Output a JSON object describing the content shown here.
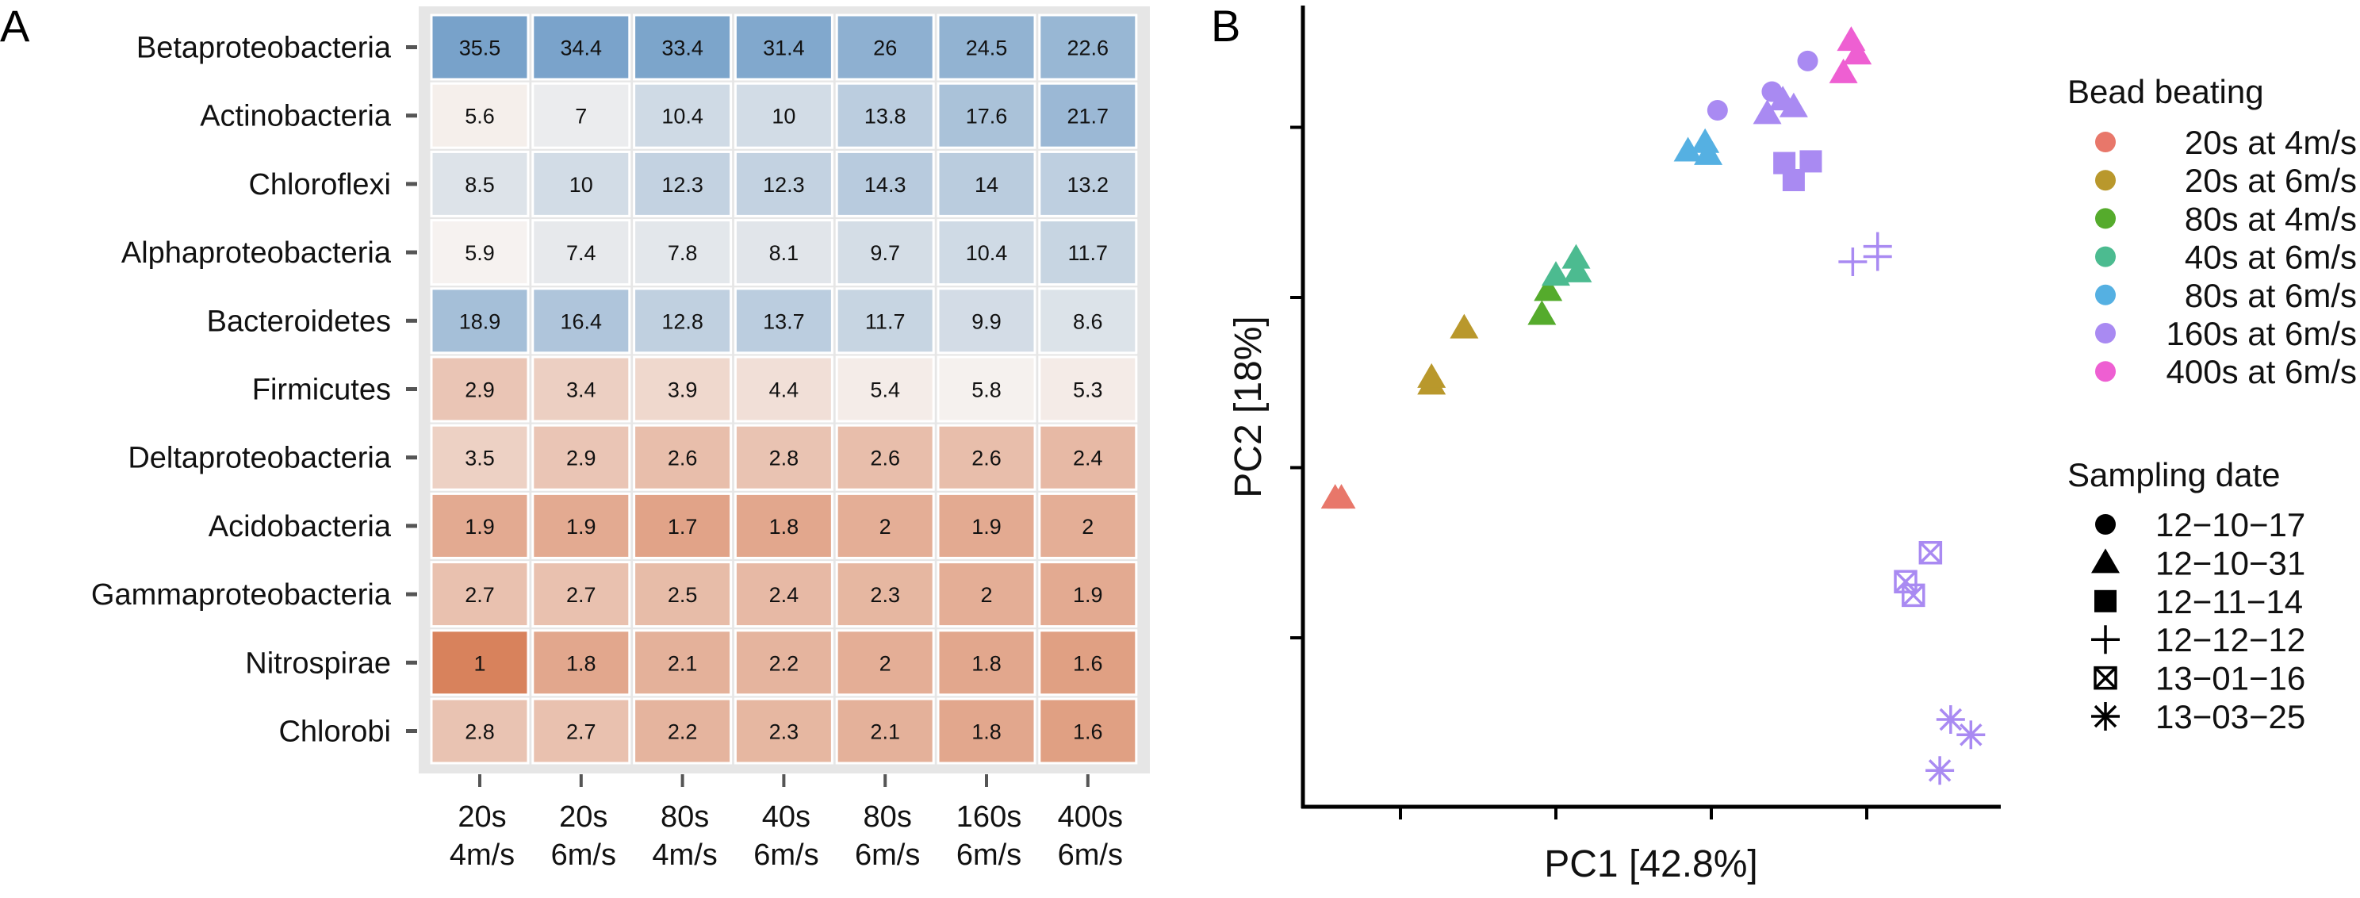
{
  "chart_data": [
    {
      "type": "heatmap",
      "panel_label": "A",
      "rows": [
        "Betaproteobacteria",
        "Actinobacteria",
        "Chloroflexi",
        "Alphaproteobacteria",
        "Bacteroidetes",
        "Firmicutes",
        "Deltaproteobacteria",
        "Acidobacteria",
        "Gammaproteobacteria",
        "Nitrospirae",
        "Chlorobi"
      ],
      "columns": [
        [
          "20s",
          "4m/s"
        ],
        [
          "20s",
          "6m/s"
        ],
        [
          "80s",
          "4m/s"
        ],
        [
          "40s",
          "6m/s"
        ],
        [
          "80s",
          "6m/s"
        ],
        [
          "160s",
          "6m/s"
        ],
        [
          "400s",
          "6m/s"
        ]
      ],
      "values": [
        [
          35.5,
          34.4,
          33.4,
          31.4,
          26,
          24.5,
          22.6
        ],
        [
          5.6,
          7,
          10.4,
          10,
          13.8,
          17.6,
          21.7
        ],
        [
          8.5,
          10,
          12.3,
          12.3,
          14.3,
          14,
          13.2
        ],
        [
          5.9,
          7.4,
          7.8,
          8.1,
          9.7,
          10.4,
          11.7
        ],
        [
          18.9,
          16.4,
          12.8,
          13.7,
          11.7,
          9.9,
          8.6
        ],
        [
          2.9,
          3.4,
          3.9,
          4.4,
          5.4,
          5.8,
          5.3
        ],
        [
          3.5,
          2.9,
          2.6,
          2.8,
          2.6,
          2.6,
          2.4
        ],
        [
          1.9,
          1.9,
          1.7,
          1.8,
          2,
          1.9,
          2
        ],
        [
          2.7,
          2.7,
          2.5,
          2.4,
          2.3,
          2,
          1.9
        ],
        [
          1,
          1.8,
          2.1,
          2.2,
          2,
          1.8,
          1.6
        ],
        [
          2.8,
          2.7,
          2.2,
          2.3,
          2.1,
          1.8,
          1.6
        ]
      ],
      "color_scale": {
        "low": "#d8825c",
        "mid": "#f6f3f1",
        "high": "#78a2ca",
        "midpoint": 6
      }
    },
    {
      "type": "scatter",
      "panel_label": "B",
      "xlabel": "PC1 [42.8%]",
      "ylabel": "PC2 [18%]",
      "xlim": [
        0.36,
        5.15
      ],
      "ylim": [
        -0.04,
        4.69
      ],
      "xticks": [
        1,
        2,
        3,
        4
      ],
      "yticks": [
        1,
        2,
        3,
        4
      ],
      "legend_color": {
        "title": "Bead beating",
        "items": [
          {
            "label": "20s at 4m/s",
            "color": "#e8776a"
          },
          {
            "label": "20s at 6m/s",
            "color": "#b9982c"
          },
          {
            "label": "80s at 4m/s",
            "color": "#55ab2c"
          },
          {
            "label": "40s at 6m/s",
            "color": "#4cbb90"
          },
          {
            "label": "80s at 6m/s",
            "color": "#55b0e2"
          },
          {
            "label": "160s at 6m/s",
            "color": "#a98af2"
          },
          {
            "label": "400s at 6m/s",
            "color": "#ee5fd2"
          }
        ]
      },
      "legend_shape": {
        "title": "Sampling date",
        "items": [
          {
            "label": "12−10−17",
            "shape": "circle"
          },
          {
            "label": "12−10−31",
            "shape": "triangle"
          },
          {
            "label": "12−11−14",
            "shape": "square"
          },
          {
            "label": "12−12−12",
            "shape": "plus"
          },
          {
            "label": "13−01−16",
            "shape": "boxx"
          },
          {
            "label": "13−03−25",
            "shape": "asterisk"
          }
        ]
      },
      "points": [
        {
          "x": 0.58,
          "y": 1.82,
          "group": 0,
          "shape": "triangle"
        },
        {
          "x": 0.62,
          "y": 1.82,
          "group": 0,
          "shape": "triangle"
        },
        {
          "x": 1.2,
          "y": 2.49,
          "group": 1,
          "shape": "triangle"
        },
        {
          "x": 1.2,
          "y": 2.53,
          "group": 1,
          "shape": "triangle"
        },
        {
          "x": 1.41,
          "y": 2.82,
          "group": 1,
          "shape": "triangle"
        },
        {
          "x": 1.91,
          "y": 2.9,
          "group": 2,
          "shape": "triangle"
        },
        {
          "x": 1.95,
          "y": 3.04,
          "group": 2,
          "shape": "triangle"
        },
        {
          "x": 2.0,
          "y": 3.13,
          "group": 3,
          "shape": "triangle"
        },
        {
          "x": 2.13,
          "y": 3.23,
          "group": 3,
          "shape": "triangle"
        },
        {
          "x": 2.14,
          "y": 3.15,
          "group": 3,
          "shape": "triangle"
        },
        {
          "x": 2.85,
          "y": 3.86,
          "group": 4,
          "shape": "triangle"
        },
        {
          "x": 2.96,
          "y": 3.91,
          "group": 4,
          "shape": "triangle"
        },
        {
          "x": 2.98,
          "y": 3.84,
          "group": 4,
          "shape": "triangle"
        },
        {
          "x": 3.04,
          "y": 4.1,
          "group": 5,
          "shape": "circle"
        },
        {
          "x": 3.39,
          "y": 4.21,
          "group": 5,
          "shape": "circle"
        },
        {
          "x": 3.62,
          "y": 4.39,
          "group": 5,
          "shape": "circle"
        },
        {
          "x": 3.36,
          "y": 4.08,
          "group": 5,
          "shape": "triangle"
        },
        {
          "x": 3.46,
          "y": 4.16,
          "group": 5,
          "shape": "triangle"
        },
        {
          "x": 3.53,
          "y": 4.12,
          "group": 5,
          "shape": "triangle"
        },
        {
          "x": 3.47,
          "y": 3.79,
          "group": 5,
          "shape": "square"
        },
        {
          "x": 3.64,
          "y": 3.8,
          "group": 5,
          "shape": "square"
        },
        {
          "x": 3.53,
          "y": 3.69,
          "group": 5,
          "shape": "square"
        },
        {
          "x": 3.91,
          "y": 3.21,
          "group": 5,
          "shape": "plus"
        },
        {
          "x": 4.07,
          "y": 3.3,
          "group": 5,
          "shape": "plus"
        },
        {
          "x": 4.07,
          "y": 3.24,
          "group": 5,
          "shape": "plus"
        },
        {
          "x": 4.41,
          "y": 1.5,
          "group": 5,
          "shape": "boxx"
        },
        {
          "x": 4.25,
          "y": 1.33,
          "group": 5,
          "shape": "boxx"
        },
        {
          "x": 4.3,
          "y": 1.25,
          "group": 5,
          "shape": "boxx"
        },
        {
          "x": 4.54,
          "y": 0.52,
          "group": 5,
          "shape": "asterisk"
        },
        {
          "x": 4.67,
          "y": 0.43,
          "group": 5,
          "shape": "asterisk"
        },
        {
          "x": 4.47,
          "y": 0.22,
          "group": 5,
          "shape": "asterisk"
        },
        {
          "x": 3.9,
          "y": 4.51,
          "group": 6,
          "shape": "triangle"
        },
        {
          "x": 3.94,
          "y": 4.43,
          "group": 6,
          "shape": "triangle"
        },
        {
          "x": 3.85,
          "y": 4.32,
          "group": 6,
          "shape": "triangle"
        }
      ]
    }
  ]
}
